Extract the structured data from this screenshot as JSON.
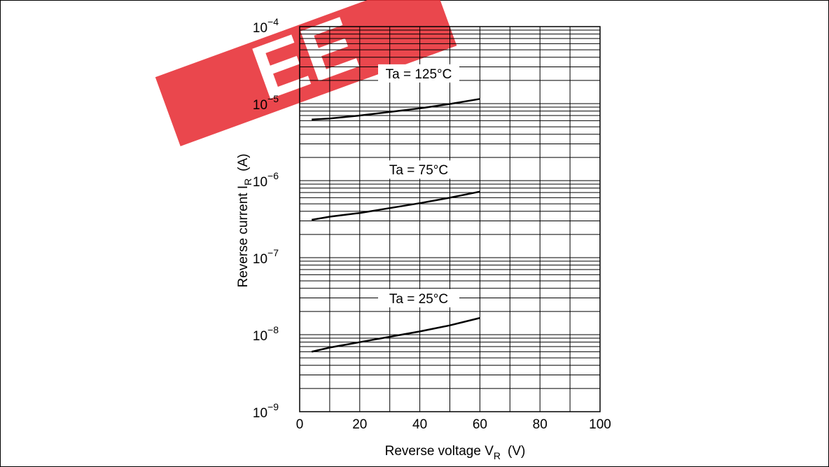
{
  "chart_data": {
    "type": "line",
    "title": "",
    "xlabel": "Reverse voltage  V",
    "xlabel_sub": "R",
    "xlabel_unit": "(V)",
    "ylabel": "Reverse current  I",
    "ylabel_sub": "R",
    "ylabel_unit": "(A)",
    "xlim": [
      0,
      100
    ],
    "ylim": [
      1e-09,
      0.0001
    ],
    "yscale": "log",
    "grid": true,
    "x_ticks": [
      "0",
      "20",
      "40",
      "60",
      "80",
      "100"
    ],
    "y_ticks": [
      {
        "base": "10",
        "exp": "−9"
      },
      {
        "base": "10",
        "exp": "−8"
      },
      {
        "base": "10",
        "exp": "−7"
      },
      {
        "base": "10",
        "exp": "−6"
      },
      {
        "base": "10",
        "exp": "−5"
      },
      {
        "base": "10",
        "exp": "−4"
      }
    ],
    "series": [
      {
        "name": "Ta = 125°C",
        "x": [
          4,
          10,
          20,
          30,
          40,
          50,
          60
        ],
        "y": [
          6.2e-06,
          6.4e-06,
          7e-06,
          7.8e-06,
          8.7e-06,
          9.9e-06,
          1.15e-05
        ]
      },
      {
        "name": "Ta = 75°C",
        "x": [
          4,
          10,
          20,
          30,
          40,
          50,
          60
        ],
        "y": [
          3.1e-07,
          3.4e-07,
          3.8e-07,
          4.4e-07,
          5.1e-07,
          6e-07,
          7.2e-07
        ]
      },
      {
        "name": "Ta = 25°C",
        "x": [
          4,
          10,
          20,
          30,
          40,
          50,
          60
        ],
        "y": [
          6e-09,
          6.8e-09,
          8e-09,
          9.4e-09,
          1.1e-08,
          1.32e-08,
          1.65e-08
        ]
      }
    ],
    "watermark": "EE",
    "colors": {
      "line": "#000000",
      "grid": "#000000",
      "watermark": "#e8333a"
    }
  }
}
